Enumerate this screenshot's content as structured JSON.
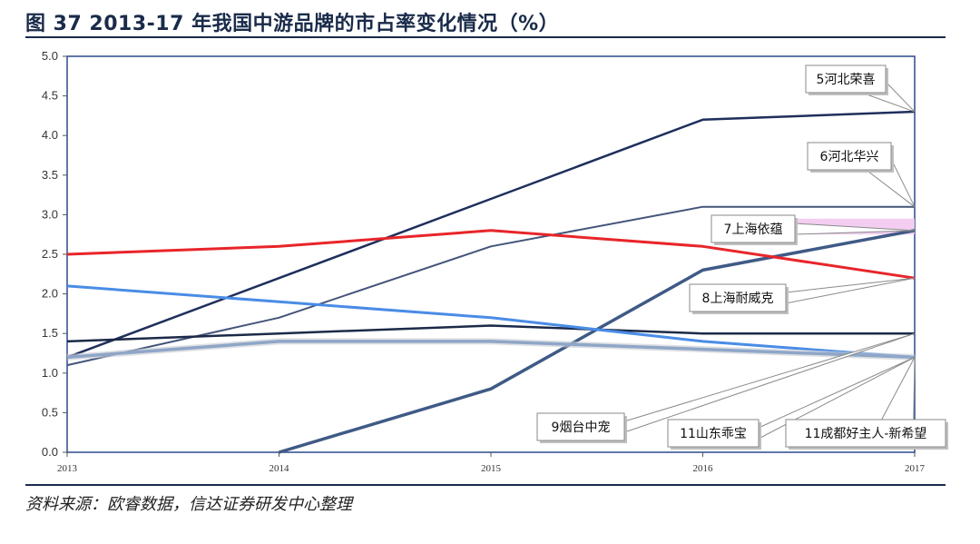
{
  "header": {
    "title": "图 37 2013-17 年我国中游品牌的市占率变化情况（%）"
  },
  "footer": {
    "source": "资料来源：欧睿数据，信达证券研发中心整理"
  },
  "chart_data": {
    "type": "line",
    "x": [
      "2013",
      "2014",
      "2015",
      "2016",
      "2017"
    ],
    "ylim": [
      0,
      5.0
    ],
    "yticks": [
      "0.0",
      "0.5",
      "1.0",
      "1.5",
      "2.0",
      "2.5",
      "3.0",
      "3.5",
      "4.0",
      "4.5",
      "5.0"
    ],
    "grid": false,
    "series": [
      {
        "name": "5河北荣喜",
        "color": "#1f2f5c",
        "values": [
          1.2,
          2.2,
          3.2,
          4.2,
          4.3
        ]
      },
      {
        "name": "6河北华兴",
        "color": "#44557a",
        "values": [
          1.1,
          1.7,
          2.6,
          3.1,
          3.1
        ]
      },
      {
        "name": "7上海依蕴",
        "color": "#3f5a86",
        "values": [
          null,
          0,
          0.8,
          2.3,
          2.8
        ]
      },
      {
        "name": "8上海耐威克",
        "color": "#e8252a",
        "values": [
          2.5,
          2.6,
          2.8,
          2.6,
          2.2
        ]
      },
      {
        "name": "9烟台中宠",
        "color": "#1c2a48",
        "values": [
          1.4,
          1.5,
          1.6,
          1.5,
          1.5
        ]
      },
      {
        "name": "11山东乖宝",
        "color": "#4a8ce6",
        "values": [
          2.1,
          1.9,
          1.7,
          1.4,
          1.2
        ]
      },
      {
        "name": "11成都好主人-新希望",
        "color": "#8fa6c7",
        "values": [
          1.2,
          1.4,
          1.4,
          1.3,
          1.2
        ]
      }
    ],
    "callouts": [
      {
        "label": "5河北荣喜",
        "series_index": 0
      },
      {
        "label": "6河北华兴",
        "series_index": 1
      },
      {
        "label": "7上海依蕴",
        "series_index": 2
      },
      {
        "label": "8上海耐威克",
        "series_index": 3
      },
      {
        "label": "9烟台中宠",
        "series_index": 4
      },
      {
        "label": "11山东乖宝",
        "series_index": 5
      },
      {
        "label": "11成都好主人-新希望",
        "series_index": 6
      }
    ]
  }
}
